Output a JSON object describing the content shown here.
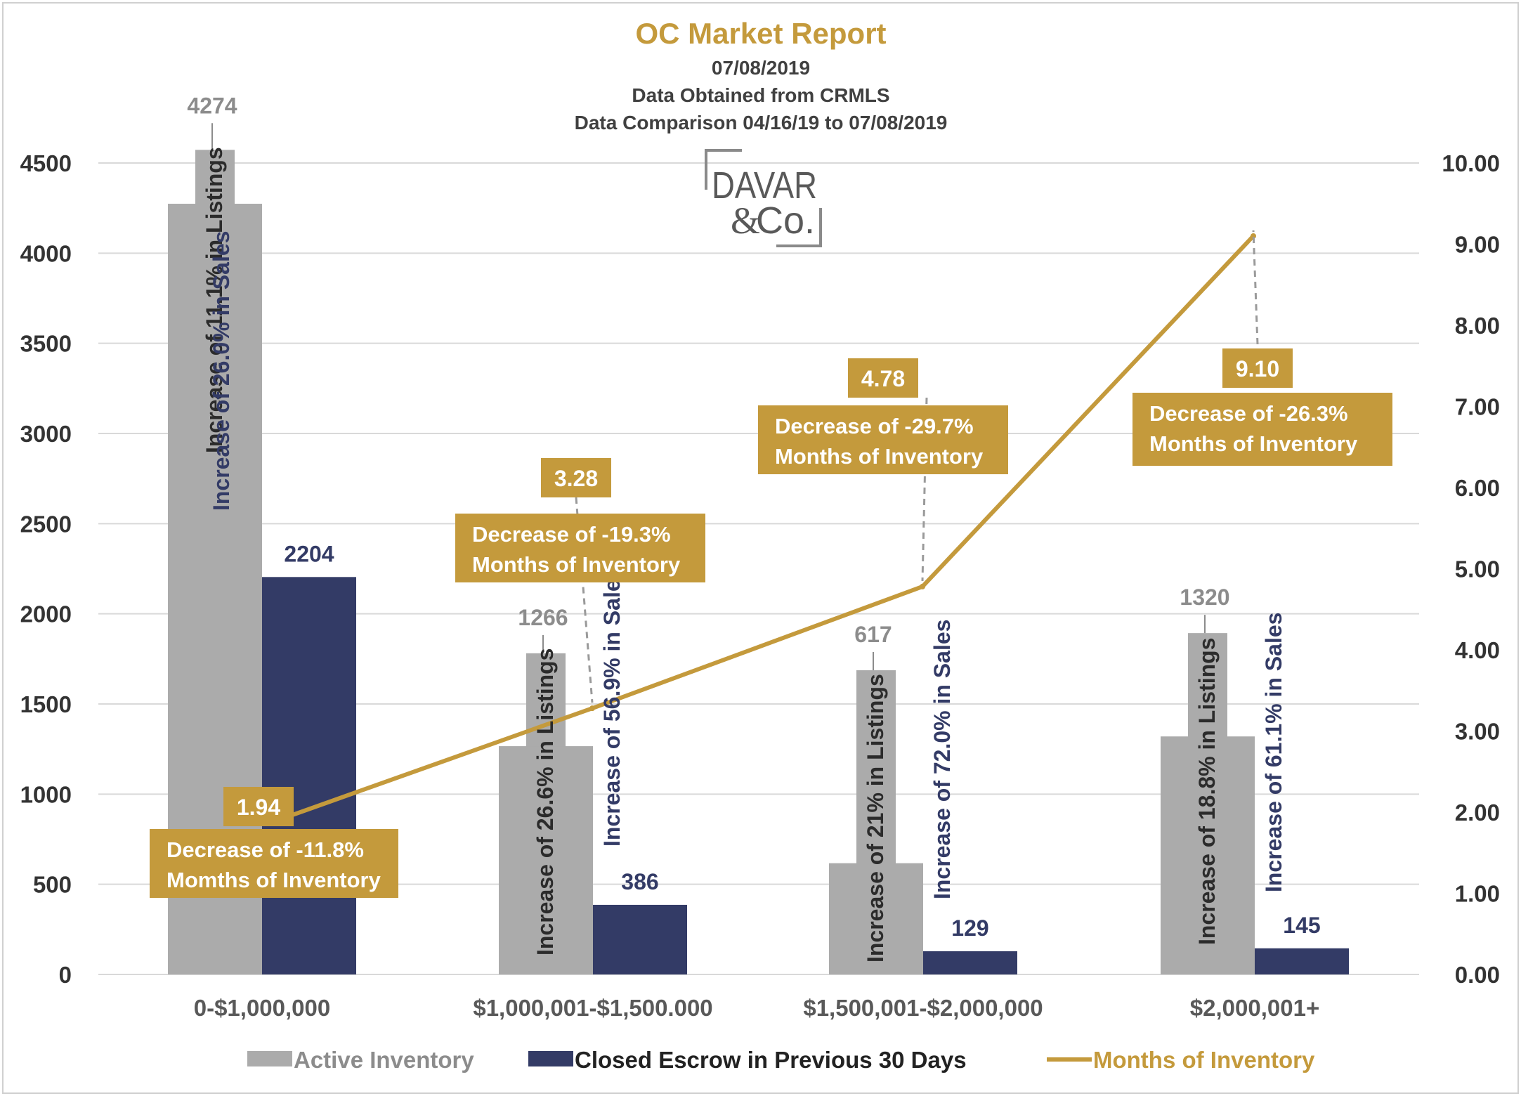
{
  "colors": {
    "active": "#ababab",
    "closed": "#333b66",
    "months": "#c49a3c",
    "title": "#c49a3c",
    "box": "#c49a3c"
  },
  "header": {
    "title": "OC Market Report",
    "date": "07/08/2019",
    "source": "Data Obtained  from CRMLS",
    "comparison": "Data Comparison  04/16/19 to 07/08/2019"
  },
  "logo": {
    "line1": "DAVAR",
    "amp": "&",
    "line2": "Co."
  },
  "legend": [
    {
      "key": "active",
      "label": "Active Inventory",
      "shape": "box",
      "color": "#ababab"
    },
    {
      "key": "closed",
      "label": "Closed Escrow in Previous 30 Days",
      "shape": "box",
      "color": "#333b66"
    },
    {
      "key": "months",
      "label": "Months of Inventory",
      "shape": "line",
      "color": "#c49a3c"
    }
  ],
  "chart_data": {
    "type": "bar",
    "title": "OC Market Report",
    "categories": [
      "0-$1,000,000",
      "$1,000,001-$1,500.000",
      "$1,500,001-$2,000,000",
      "$2,000,001+"
    ],
    "ylim": [
      0,
      4500
    ],
    "y_ticks": [
      "0",
      "500",
      "1000",
      "1500",
      "2000",
      "2500",
      "3000",
      "3500",
      "4000",
      "4500"
    ],
    "y2lim": [
      0,
      10
    ],
    "y2_ticks": [
      "0.00",
      "1.00",
      "2.00",
      "3.00",
      "4.00",
      "5.00",
      "6.00",
      "7.00",
      "8.00",
      "9.00",
      "10.00"
    ],
    "grid": true,
    "legend_position": "bottom",
    "series": [
      {
        "key": "active",
        "name": "Active Inventory",
        "type": "bar",
        "axis": "left",
        "values": [
          4274,
          1266,
          617,
          1320
        ],
        "previous_values": [
          4573,
          1781,
          1687,
          1893
        ],
        "annotations": [
          "Increase of 11.1% in Listings",
          "Increase of 26.6% in Listings",
          "Increase of 21% in Listings",
          "Increase of 18.8% in Listings"
        ]
      },
      {
        "key": "closed",
        "name": "Closed Escrow in Previous 30 Days",
        "type": "bar",
        "axis": "left",
        "values": [
          2204,
          386,
          129,
          145
        ],
        "annotations": [
          "Increase of 26.0% in Sales",
          "Increase of 56.9% in Sales",
          "Increase of 72.0% in Sales",
          "Increase of 61.1% in Sales"
        ]
      },
      {
        "key": "months",
        "name": "Months of Inventory",
        "type": "line",
        "axis": "right",
        "values": [
          1.94,
          3.28,
          4.78,
          9.1
        ],
        "labels": [
          "1.94",
          "3.28",
          "4.78",
          "9.10"
        ],
        "annotations": [
          [
            "Decrease of -11.8%",
            "Momths of Inventory"
          ],
          [
            "Decrease of -19.3%",
            "Months of Inventory"
          ],
          [
            "Decrease of -29.7%",
            "Months of Inventory"
          ],
          [
            "Decrease of -26.3%",
            "Months of Inventory"
          ]
        ]
      }
    ]
  }
}
